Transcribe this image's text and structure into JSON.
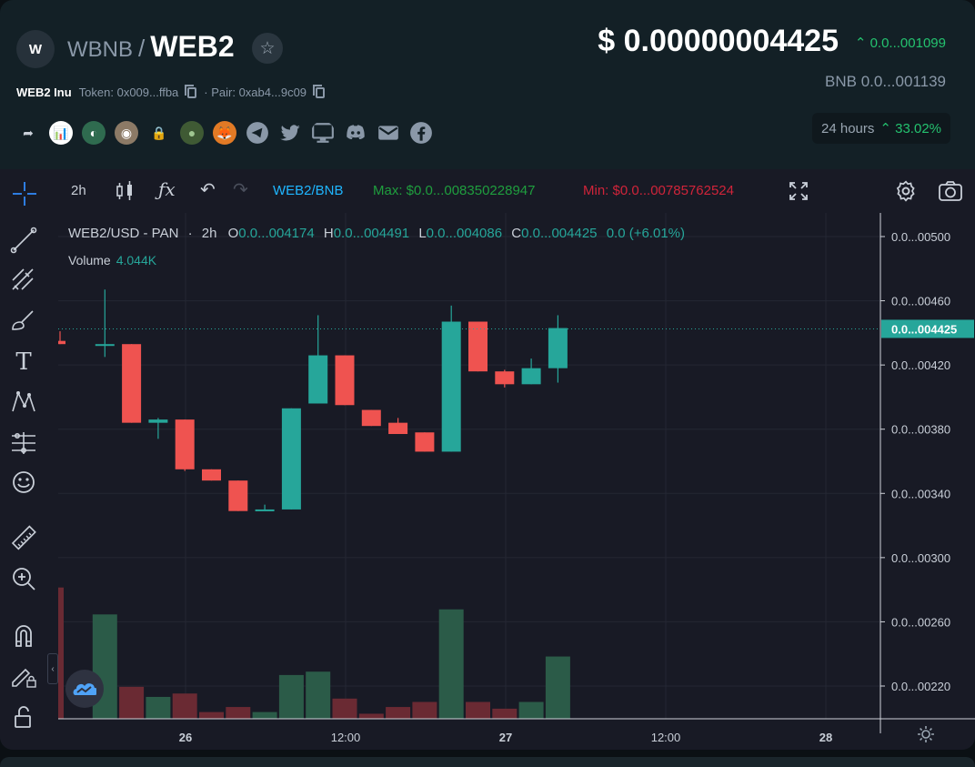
{
  "header": {
    "logo_letter": "W",
    "base_symbol": "WBNB",
    "separator": "/",
    "quote_symbol": "WEB2",
    "token_name": "WEB2 Inu",
    "token_label": "Token: 0x009...ffba",
    "pair_label": "· Pair: 0xab4...9c09",
    "price": "$ 0.00000004425",
    "price_change": "0.0...001099",
    "bnb_price": "BNB  0.0...001139",
    "period_label": "24 hours",
    "period_change": "33.02%",
    "social_icons": [
      "share-icon",
      "chart-icon",
      "dextools-icon",
      "coin-icon",
      "lock-icon",
      "token-icon",
      "metamask-icon",
      "telegram-icon",
      "twitter-icon",
      "website-icon",
      "discord-icon",
      "email-icon",
      "facebook-icon"
    ]
  },
  "toolbar": {
    "interval": "2h",
    "pair": "WEB2/BNB",
    "max_label": "Max: $0.0...008350228947",
    "min_label": "Min: $0.0...00785762524"
  },
  "legend": {
    "symbol": "WEB2/USD - PAN",
    "interval": "2h",
    "open_key": "O",
    "open": "0.0...004174",
    "high_key": "H",
    "high": "0.0...004491",
    "low_key": "L",
    "low": "0.0...004086",
    "close_key": "C",
    "close": "0.0...004425",
    "change": "0.0 (+6.01%)",
    "volume_label": "Volume",
    "volume_value": "4.044K"
  },
  "colors": {
    "up": "#26a69a",
    "down": "#ef5350",
    "accent": "#1fb6ff",
    "positive": "#24c26f"
  },
  "chart_data": {
    "type": "candlestick",
    "y_tick_labels": [
      "0.0...00500",
      "0.0...00460",
      "0.0...00420",
      "0.0...00380",
      "0.0...00340",
      "0.0...00300",
      "0.0...00260",
      "0.0...00220"
    ],
    "y_tick_values": [
      0.005,
      0.0046,
      0.0042,
      0.0038,
      0.0034,
      0.003,
      0.0026,
      0.0022
    ],
    "current_price_label": "0.0...004425",
    "current_price": 0.004425,
    "x_tick_labels": [
      "26",
      "12:00",
      "27",
      "12:00",
      "28"
    ],
    "candles": [
      {
        "o": 0.00435,
        "h": 0.00441,
        "l": 0.00433,
        "c": 0.00433
      },
      {
        "o": 0.00432,
        "h": 0.00467,
        "l": 0.00425,
        "c": 0.00433
      },
      {
        "o": 0.00433,
        "h": 0.00433,
        "l": 0.00384,
        "c": 0.00384
      },
      {
        "o": 0.00384,
        "h": 0.00387,
        "l": 0.00374,
        "c": 0.00386
      },
      {
        "o": 0.00386,
        "h": 0.00386,
        "l": 0.00354,
        "c": 0.00355
      },
      {
        "o": 0.00355,
        "h": 0.00355,
        "l": 0.00348,
        "c": 0.00348
      },
      {
        "o": 0.00348,
        "h": 0.00348,
        "l": 0.00329,
        "c": 0.00329
      },
      {
        "o": 0.00329,
        "h": 0.00333,
        "l": 0.00329,
        "c": 0.0033
      },
      {
        "o": 0.0033,
        "h": 0.00393,
        "l": 0.0033,
        "c": 0.00393
      },
      {
        "o": 0.00396,
        "h": 0.00451,
        "l": 0.00396,
        "c": 0.00426
      },
      {
        "o": 0.00426,
        "h": 0.00426,
        "l": 0.00395,
        "c": 0.00395
      },
      {
        "o": 0.00392,
        "h": 0.00392,
        "l": 0.00382,
        "c": 0.00382
      },
      {
        "o": 0.00384,
        "h": 0.00387,
        "l": 0.00377,
        "c": 0.00377
      },
      {
        "o": 0.00378,
        "h": 0.00378,
        "l": 0.00366,
        "c": 0.00366
      },
      {
        "o": 0.00366,
        "h": 0.00457,
        "l": 0.00366,
        "c": 0.00447
      },
      {
        "o": 0.00447,
        "h": 0.00447,
        "l": 0.00416,
        "c": 0.00416
      },
      {
        "o": 0.00416,
        "h": 0.00417,
        "l": 0.00406,
        "c": 0.00408
      },
      {
        "o": 0.00408,
        "h": 0.00424,
        "l": 0.00408,
        "c": 0.00418
      },
      {
        "o": 0.00418,
        "h": 0.00451,
        "l": 0.00409,
        "c": 0.00443
      }
    ],
    "volume": [
      {
        "v": 0.78,
        "up": false
      },
      {
        "v": 0.62,
        "up": true
      },
      {
        "v": 0.19,
        "up": false
      },
      {
        "v": 0.13,
        "up": true
      },
      {
        "v": 0.15,
        "up": false
      },
      {
        "v": 0.04,
        "up": false
      },
      {
        "v": 0.07,
        "up": false
      },
      {
        "v": 0.04,
        "up": true
      },
      {
        "v": 0.26,
        "up": true
      },
      {
        "v": 0.28,
        "up": true
      },
      {
        "v": 0.12,
        "up": false
      },
      {
        "v": 0.03,
        "up": false
      },
      {
        "v": 0.07,
        "up": false
      },
      {
        "v": 0.1,
        "up": false
      },
      {
        "v": 0.65,
        "up": true
      },
      {
        "v": 0.1,
        "up": false
      },
      {
        "v": 0.06,
        "up": false
      },
      {
        "v": 0.1,
        "up": true
      },
      {
        "v": 0.37,
        "up": true
      }
    ]
  }
}
